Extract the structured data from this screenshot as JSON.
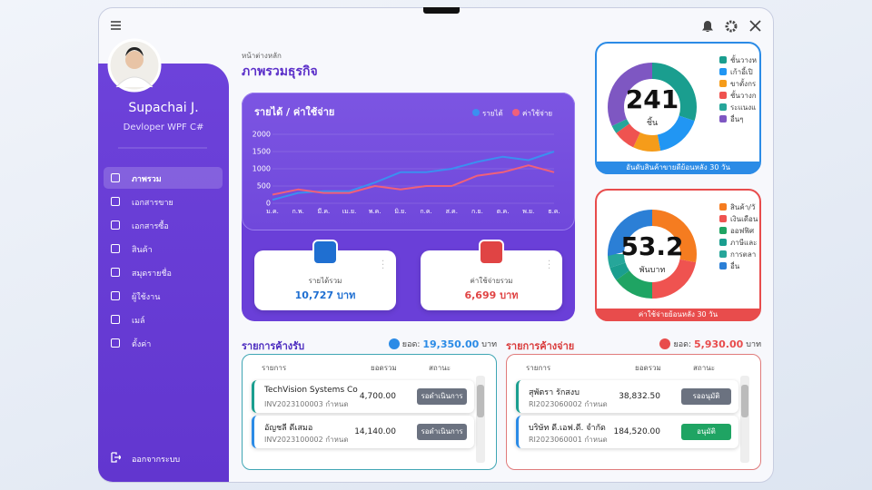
{
  "window": {
    "notch": true
  },
  "sidebar": {
    "name": "Supachai J.",
    "role": "Devloper WPF C#",
    "menu": [
      "ภาพรวม",
      "เอกสารขาย",
      "เอกสารซื้อ",
      "สินค้า",
      "สมุดรายชื่อ",
      "ผู้ใช้งาน",
      "เมล์",
      "ตั้งค่า"
    ],
    "logout": "ออกจากระบบ"
  },
  "header": {
    "breadcrumb": "หน้าต่างหลัก",
    "title": "ภาพรวมธุรกิจ"
  },
  "revenue_chart": {
    "type": "line",
    "title": "รายได้ / ค่าใช้จ่าย",
    "categories": [
      "ม.ค.",
      "ก.พ.",
      "มี.ค.",
      "เม.ย.",
      "พ.ค.",
      "มิ.ย.",
      "ก.ค.",
      "ส.ค.",
      "ก.ย.",
      "ต.ค.",
      "พ.ย.",
      "ธ.ค."
    ],
    "series": [
      {
        "name": "รายได้",
        "color": "#3b8ff0",
        "values": [
          100,
          300,
          350,
          350,
          600,
          900,
          900,
          1000,
          1200,
          1350,
          1250,
          1500
        ]
      },
      {
        "name": "ค่าใช้จ่าย",
        "color": "#f0607a",
        "values": [
          250,
          400,
          300,
          300,
          500,
          400,
          500,
          500,
          800,
          900,
          1100,
          900
        ]
      }
    ],
    "ylim": [
      0,
      2000
    ],
    "yticks": [
      0,
      500,
      1000,
      1500,
      2000
    ],
    "grid": true
  },
  "summary": [
    {
      "label": "รายได้รวม",
      "value": "10,727 บาท",
      "color": "#1f6fd1"
    },
    {
      "label": "ค่าใช้จ่ายรวม",
      "value": "6,699 บาท",
      "color": "#e04444"
    }
  ],
  "donuts": [
    {
      "type": "pie",
      "center": "241",
      "unit": "ชิ้น",
      "footer": "อันดับสินค้าขายดีย้อนหลัง 30 วัน",
      "border": "#2b8be6",
      "categories": [
        "ชั้นวางห",
        "เก้าอี้เปิ",
        "ขาตั้งกร",
        "ชั้นวางก",
        "ระแนงแ",
        "อื่นๆ"
      ],
      "colors": [
        "#1a9e8f",
        "#2196f3",
        "#f59c1a",
        "#ef5350",
        "#26a69a",
        "#7e57c2"
      ],
      "values": [
        30,
        17,
        10,
        8,
        3,
        32
      ]
    },
    {
      "type": "pie",
      "center": "53.2",
      "unit": "พันบาท",
      "footer": "ค่าใช้จ่ายย้อนหลัง 30 วัน",
      "border": "#e84c4c",
      "categories": [
        "สินค้า/วั",
        "เงินเดือน",
        "ออฟฟิศ",
        "ภาษีและ",
        "การตลา",
        "อื่น"
      ],
      "colors": [
        "#f57c20",
        "#ef5350",
        "#1fa463",
        "#1a9e8f",
        "#26a69a",
        "#2b7fd6"
      ],
      "values": [
        28,
        22,
        15,
        5,
        5,
        25
      ]
    }
  ],
  "lists": [
    {
      "title": "รายการค้างรับ",
      "total_label": "ยอด:",
      "total": "19,350.00",
      "currency": "บาท",
      "color": "#4b2bbf",
      "accent": "#2b8be6",
      "border": "#3fa6b4",
      "columns": [
        "รายการ",
        "ยอดรวม",
        "สถานะ"
      ],
      "rows": [
        {
          "name": "TechVision Systems Co",
          "id": "INV2023100003 กำหนด",
          "amount": "4,700.00",
          "status": "รอดำเนินการ",
          "bar": "#1a9e8f",
          "badge": "#6b7280"
        },
        {
          "name": "อัญชลี ดีเสมอ",
          "id": "INV2023100002 กำหนด",
          "amount": "14,140.00",
          "status": "รอดำเนินการ",
          "bar": "#2b8be6",
          "badge": "#6b7280"
        }
      ]
    },
    {
      "title": "รายการค้างจ่าย",
      "total_label": "ยอด:",
      "total": "5,930.00",
      "currency": "บาท",
      "color": "#d93a3a",
      "accent": "#e84c4c",
      "border": "#e07b7b",
      "columns": [
        "รายการ",
        "ยอดรวม",
        "สถานะ"
      ],
      "rows": [
        {
          "name": "สุพัตรา รักสงบ",
          "id": "RI2023060002 กำหนด",
          "amount": "38,832.50",
          "status": "รออนุมัติ",
          "bar": "#1a9e8f",
          "badge": "#6b7280"
        },
        {
          "name": "บริษัท ดี.เอฟ.ดี. จำกัด",
          "id": "RI2023060001 กำหนด",
          "amount": "184,520.00",
          "status": "อนุมัติ",
          "bar": "#2b8be6",
          "badge": "#1fa463"
        }
      ]
    }
  ]
}
